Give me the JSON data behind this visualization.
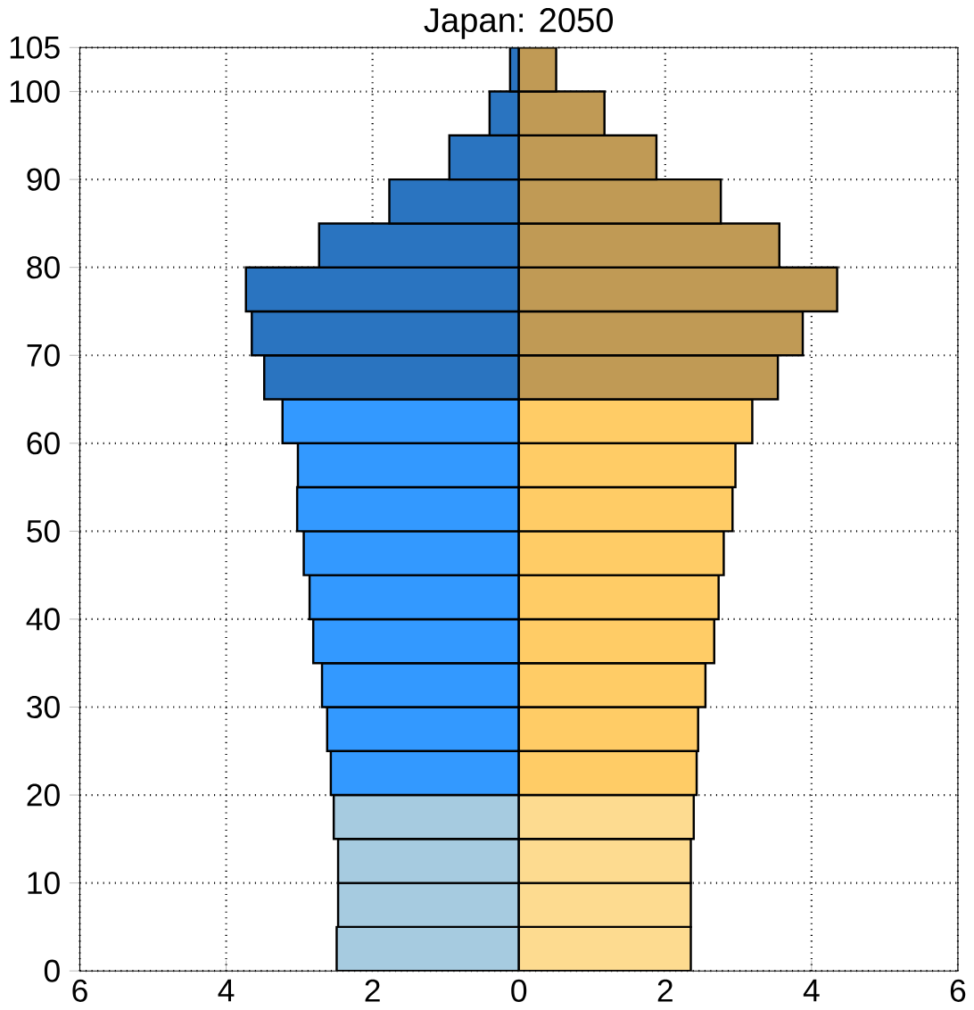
{
  "chart_data": {
    "type": "bar",
    "orientation": "horizontal",
    "title": "Japan: 2050",
    "x": [
      2.5,
      7.5,
      12.5,
      17.5,
      22.5,
      27.5,
      32.5,
      37.5,
      42.5,
      47.5,
      52.5,
      57.5,
      62.5,
      67.5,
      72.5,
      77.5,
      82.5,
      87.5,
      92.5,
      97.5,
      102.5
    ],
    "series": [
      {
        "values": [
          -2.49,
          -2.47,
          -2.47,
          -2.53,
          -2.57,
          -2.62,
          -2.69,
          -2.81,
          -2.86,
          -2.94,
          -3.03,
          -3.02,
          -3.23,
          -3.48,
          -3.65,
          -3.73,
          -2.73,
          -1.77,
          -0.95,
          -0.4,
          -0.12
        ],
        "colors": [
          "#a6cbe0",
          "#a6cbe0",
          "#a6cbe0",
          "#a6cbe0",
          "#3399ff",
          "#3399ff",
          "#3399ff",
          "#3399ff",
          "#3399ff",
          "#3399ff",
          "#3399ff",
          "#3399ff",
          "#3399ff",
          "#2a74c0",
          "#2a74c0",
          "#2a74c0",
          "#2a74c0",
          "#2a74c0",
          "#2a74c0",
          "#2a74c0",
          "#2a74c0"
        ]
      },
      {
        "values": [
          2.35,
          2.35,
          2.35,
          2.39,
          2.43,
          2.45,
          2.55,
          2.67,
          2.73,
          2.8,
          2.92,
          2.96,
          3.19,
          3.54,
          3.88,
          4.35,
          3.56,
          2.76,
          1.88,
          1.17,
          0.51
        ],
        "colors": [
          "#fddb90",
          "#fddb90",
          "#fddb90",
          "#fddb90",
          "#ffcc66",
          "#ffcc66",
          "#ffcc66",
          "#ffcc66",
          "#ffcc66",
          "#ffcc66",
          "#ffcc66",
          "#ffcc66",
          "#ffcc66",
          "#c09a55",
          "#c09a55",
          "#c09a55",
          "#c09a55",
          "#c09a55",
          "#c09a55",
          "#c09a55",
          "#c09a55"
        ]
      }
    ],
    "xlim": [
      -6,
      6
    ],
    "ylim": [
      0,
      105
    ],
    "xticks": [
      {
        "value": -6,
        "label": "6"
      },
      {
        "value": -4,
        "label": "4"
      },
      {
        "value": -2,
        "label": "2"
      },
      0,
      2,
      4,
      6
    ],
    "yticks": [
      0,
      10,
      20,
      30,
      40,
      50,
      60,
      70,
      80,
      90,
      100,
      105
    ],
    "grid": true,
    "stacked": true
  }
}
